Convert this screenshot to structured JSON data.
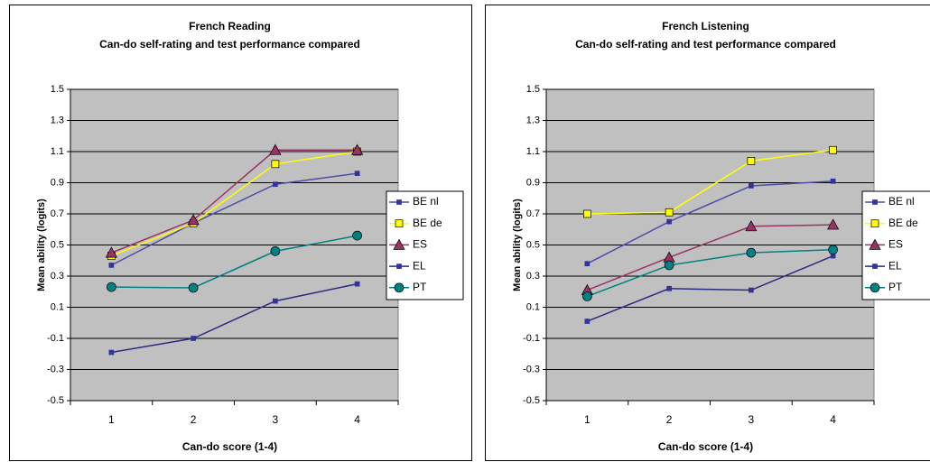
{
  "chart_data": [
    {
      "type": "line",
      "title": "French Reading",
      "subtitle": "Can-do self-rating and test performance compared",
      "x_label": "Can-do score  (1-4)",
      "y_label": "Mean ability (logits)",
      "categories": [
        "1",
        "2",
        "3",
        "4"
      ],
      "ylim": [
        -0.5,
        1.5
      ],
      "yticks": [
        -0.5,
        -0.3,
        -0.1,
        0.1,
        0.3,
        0.5,
        0.7,
        0.9,
        1.1,
        1.3,
        1.5
      ],
      "grid": true,
      "legend": "right",
      "plot_background": "#c0c0c0",
      "series": [
        {
          "name": "BE nl",
          "color": "#4d4dab",
          "marker_color": "#333399",
          "marker": "square",
          "values": [
            0.37,
            0.64,
            0.89,
            0.96
          ]
        },
        {
          "name": "BE de",
          "color": "#ffff00",
          "marker_color": "#ffff00",
          "marker": "square",
          "values": [
            0.43,
            0.64,
            1.02,
            1.1
          ]
        },
        {
          "name": "ES",
          "color": "#993366",
          "marker_color": "#993366",
          "marker": "triangle",
          "values": [
            0.45,
            0.66,
            1.11,
            1.11
          ]
        },
        {
          "name": "EL",
          "color": "#2a2a80",
          "marker_color": "#333399",
          "marker": "square",
          "values": [
            -0.19,
            -0.1,
            0.14,
            0.25
          ]
        },
        {
          "name": "PT",
          "color": "#008080",
          "marker_color": "#008080",
          "marker": "circle",
          "values": [
            0.23,
            0.225,
            0.46,
            0.56
          ]
        }
      ]
    },
    {
      "type": "line",
      "title": "French Listening",
      "subtitle": "Can-do self-rating and test performance compared",
      "x_label": "Can-do score  (1-4)",
      "y_label": "Mean ability (logits)",
      "categories": [
        "1",
        "2",
        "3",
        "4"
      ],
      "ylim": [
        -0.5,
        1.5
      ],
      "yticks": [
        -0.5,
        -0.3,
        -0.1,
        0.1,
        0.3,
        0.5,
        0.7,
        0.9,
        1.1,
        1.3,
        1.5
      ],
      "grid": true,
      "legend": "right",
      "plot_background": "#c0c0c0",
      "series": [
        {
          "name": "BE nl",
          "color": "#4d4dab",
          "marker_color": "#333399",
          "marker": "square",
          "values": [
            0.38,
            0.65,
            0.88,
            0.91
          ]
        },
        {
          "name": "BE de",
          "color": "#ffff00",
          "marker_color": "#ffff00",
          "marker": "square",
          "values": [
            0.7,
            0.71,
            1.04,
            1.11
          ]
        },
        {
          "name": "ES",
          "color": "#993366",
          "marker_color": "#993366",
          "marker": "triangle",
          "values": [
            0.21,
            0.42,
            0.62,
            0.63
          ]
        },
        {
          "name": "EL",
          "color": "#2a2a80",
          "marker_color": "#333399",
          "marker": "square",
          "values": [
            0.01,
            0.22,
            0.21,
            0.43
          ]
        },
        {
          "name": "PT",
          "color": "#008080",
          "marker_color": "#008080",
          "marker": "circle",
          "values": [
            0.17,
            0.37,
            0.45,
            0.47
          ]
        }
      ]
    }
  ]
}
